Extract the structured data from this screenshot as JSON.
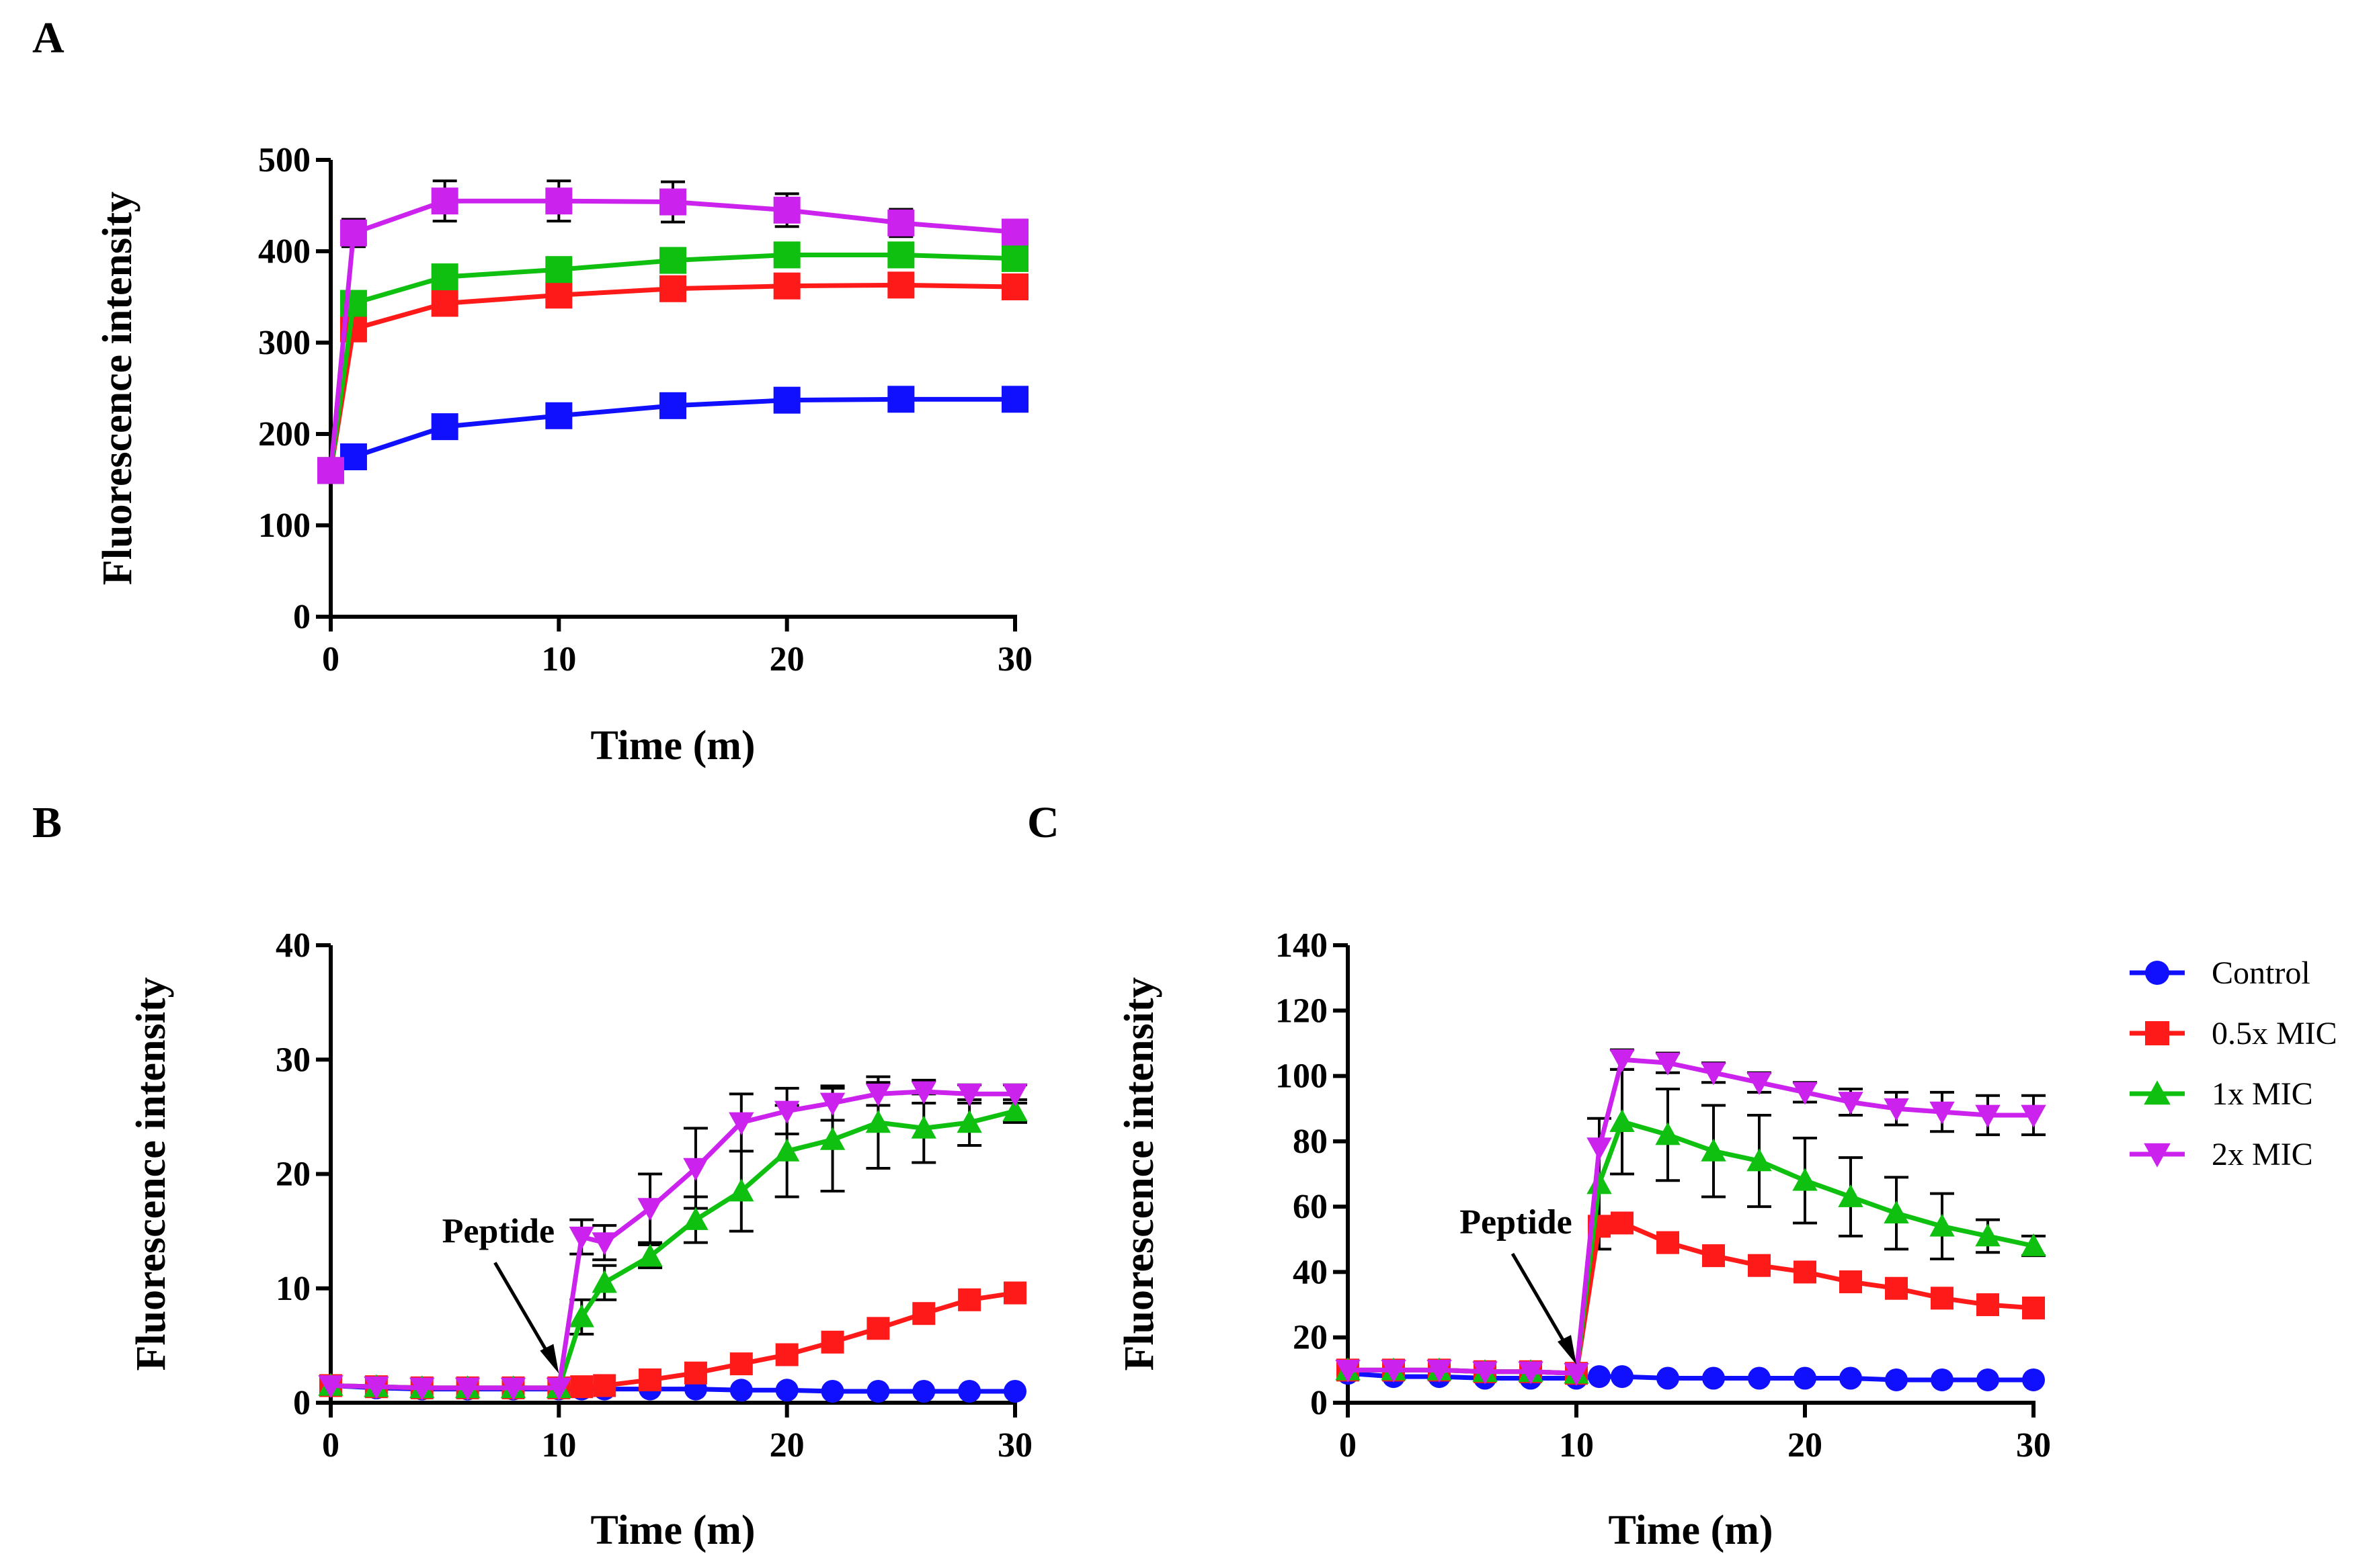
{
  "legend": {
    "items": [
      {
        "label": "Control",
        "color": "#1010ff",
        "marker": "circle"
      },
      {
        "label": "0.5x MIC",
        "color": "#ff1a1a",
        "marker": "square"
      },
      {
        "label": "1x MIC",
        "color": "#10c010",
        "marker": "triangle-up"
      },
      {
        "label": "2x MIC",
        "color": "#cc22ee",
        "marker": "triangle-down"
      }
    ]
  },
  "chart_data": [
    {
      "panel": "A",
      "type": "line",
      "title": "",
      "xlabel": "Time  (m)",
      "ylabel": "Fluorescence intensity",
      "xlim": [
        0,
        30
      ],
      "ylim": [
        0,
        500
      ],
      "xticks": [
        "0",
        "10",
        "20",
        "30"
      ],
      "yticks": [
        "0",
        "100",
        "200",
        "300",
        "400",
        "500"
      ],
      "x": [
        0,
        1,
        5,
        10,
        15,
        20,
        25,
        30
      ],
      "series": [
        {
          "name": "Control",
          "color": "#1010ff",
          "marker": "square",
          "values": [
            160,
            175,
            208,
            220,
            231,
            237,
            238,
            238
          ],
          "errors": [
            0,
            0,
            0,
            0,
            0,
            0,
            0,
            0
          ]
        },
        {
          "name": "0.5x MIC",
          "color": "#ff1a1a",
          "marker": "square",
          "values": [
            160,
            315,
            343,
            352,
            359,
            362,
            363,
            361
          ],
          "errors": [
            0,
            0,
            0,
            0,
            0,
            0,
            0,
            0
          ]
        },
        {
          "name": "1x MIC",
          "color": "#10c010",
          "marker": "square",
          "values": [
            160,
            343,
            372,
            380,
            390,
            396,
            396,
            392
          ],
          "errors": [
            0,
            0,
            0,
            0,
            0,
            0,
            0,
            0
          ]
        },
        {
          "name": "2x MIC",
          "color": "#cc22ee",
          "marker": "square",
          "values": [
            160,
            420,
            455,
            455,
            454,
            445,
            431,
            421
          ],
          "errors": [
            0,
            15,
            22,
            22,
            22,
            18,
            15,
            12
          ]
        }
      ]
    },
    {
      "panel": "B",
      "type": "line",
      "title": "",
      "xlabel": "Time  (m)",
      "ylabel": "Fluorescence intensity",
      "xlim": [
        0,
        30
      ],
      "ylim": [
        0,
        40
      ],
      "xticks": [
        "0",
        "10",
        "20",
        "30"
      ],
      "yticks": [
        "0",
        "10",
        "20",
        "30",
        "40"
      ],
      "annotation": {
        "text": "Peptide",
        "x": 10,
        "y": 1.5
      },
      "x": [
        0,
        2,
        4,
        6,
        8,
        10,
        11,
        12,
        14,
        16,
        18,
        20,
        22,
        24,
        26,
        28,
        30
      ],
      "series": [
        {
          "name": "Control",
          "color": "#1010ff",
          "marker": "circle",
          "values": [
            1.5,
            1.3,
            1.2,
            1.2,
            1.2,
            1.2,
            1.2,
            1.2,
            1.2,
            1.2,
            1.1,
            1.1,
            1.0,
            1.0,
            1.0,
            1.0,
            1.0
          ],
          "errors": [
            0,
            0,
            0,
            0,
            0,
            0,
            0,
            0,
            0,
            0,
            0,
            0,
            0,
            0,
            0,
            0,
            0
          ]
        },
        {
          "name": "0.5x MIC",
          "color": "#ff1a1a",
          "marker": "square",
          "values": [
            1.5,
            1.4,
            1.3,
            1.3,
            1.3,
            1.3,
            1.4,
            1.5,
            2.0,
            2.6,
            3.4,
            4.2,
            5.3,
            6.5,
            7.8,
            9.0,
            9.6
          ],
          "errors": [
            0,
            0,
            0,
            0,
            0,
            0,
            0,
            0,
            0,
            0,
            0,
            0,
            0,
            0,
            0,
            0,
            0
          ]
        },
        {
          "name": "1x MIC",
          "color": "#10c010",
          "marker": "triangle-up",
          "values": [
            1.5,
            1.4,
            1.3,
            1.3,
            1.3,
            1.3,
            7.5,
            10.5,
            12.8,
            16.0,
            18.5,
            22.0,
            23.0,
            24.5,
            24.0,
            24.5,
            25.5
          ],
          "errors": [
            0,
            0,
            0,
            0,
            0,
            0,
            1.5,
            1.5,
            1.0,
            2.0,
            3.5,
            4.0,
            4.5,
            4.0,
            3.0,
            2.0,
            1.0
          ]
        },
        {
          "name": "2x MIC",
          "color": "#cc22ee",
          "marker": "triangle-down",
          "values": [
            1.5,
            1.4,
            1.3,
            1.3,
            1.3,
            1.3,
            14.5,
            14.0,
            17.0,
            20.5,
            24.5,
            25.5,
            26.2,
            27.0,
            27.2,
            27.0,
            27.0
          ],
          "errors": [
            0,
            0,
            0,
            0,
            0,
            0,
            1.5,
            1.5,
            3.0,
            3.5,
            2.5,
            2.0,
            1.5,
            1.0,
            1.0,
            0.8,
            0.8
          ]
        }
      ]
    },
    {
      "panel": "C",
      "type": "line",
      "title": "",
      "xlabel": "Time  (m)",
      "ylabel": "Fluorescence intensity",
      "xlim": [
        0,
        30
      ],
      "ylim": [
        0,
        140
      ],
      "xticks": [
        "0",
        "10",
        "20",
        "30"
      ],
      "yticks": [
        "0",
        "20",
        "40",
        "60",
        "80",
        "100",
        "120",
        "140"
      ],
      "annotation": {
        "text": "Peptide",
        "x": 10,
        "y": 8
      },
      "x": [
        0,
        2,
        4,
        6,
        8,
        10,
        11,
        12,
        14,
        16,
        18,
        20,
        22,
        24,
        26,
        28,
        30
      ],
      "series": [
        {
          "name": "Control",
          "color": "#1010ff",
          "marker": "circle",
          "values": [
            9,
            8,
            8,
            7.5,
            7.5,
            7.5,
            8,
            8,
            7.5,
            7.5,
            7.5,
            7.5,
            7.5,
            7,
            7,
            7,
            7
          ],
          "errors": [
            0,
            0,
            0,
            0,
            0,
            0,
            0,
            0,
            0,
            0,
            0,
            0,
            0,
            0,
            0,
            0,
            0
          ]
        },
        {
          "name": "0.5x MIC",
          "color": "#ff1a1a",
          "marker": "square",
          "values": [
            10,
            10,
            10,
            9.5,
            9.5,
            9,
            54,
            55,
            49,
            45,
            42,
            40,
            37,
            35,
            32,
            30,
            29
          ],
          "errors": [
            0,
            0,
            0,
            0,
            0,
            0,
            0,
            0,
            0,
            0,
            0,
            0,
            0,
            0,
            0,
            0,
            0
          ]
        },
        {
          "name": "1x MIC",
          "color": "#10c010",
          "marker": "triangle-up",
          "values": [
            10,
            10,
            10,
            9.5,
            9.5,
            9,
            67,
            86,
            82,
            77,
            74,
            68,
            63,
            58,
            54,
            51,
            48
          ],
          "errors": [
            0,
            0,
            0,
            0,
            0,
            0,
            20,
            16,
            14,
            14,
            14,
            13,
            12,
            11,
            10,
            5,
            3
          ]
        },
        {
          "name": "2x MIC",
          "color": "#cc22ee",
          "marker": "triangle-down",
          "values": [
            10,
            10,
            10,
            9.5,
            9.5,
            9,
            78,
            105,
            104,
            101,
            98,
            95,
            92,
            90,
            89,
            88,
            88
          ],
          "errors": [
            0,
            0,
            0,
            0,
            0,
            0,
            0,
            3,
            3,
            3,
            3,
            3,
            4,
            5,
            6,
            6,
            6
          ]
        }
      ]
    }
  ]
}
